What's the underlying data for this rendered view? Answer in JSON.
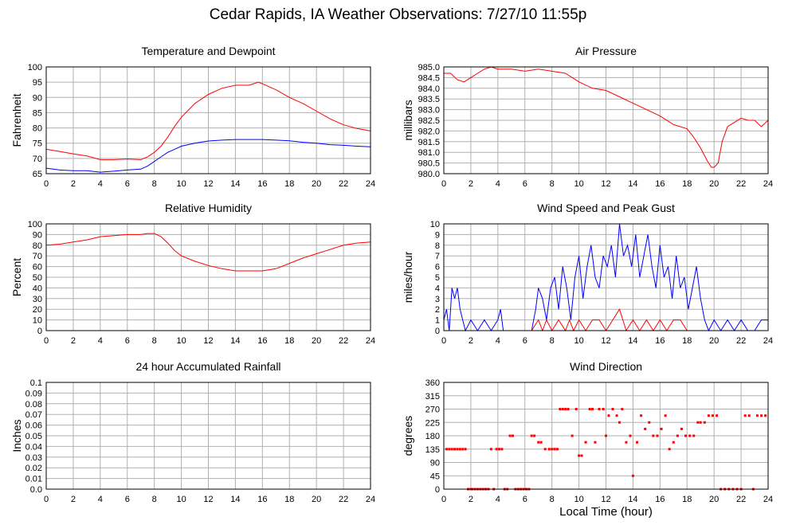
{
  "page": {
    "title": "Cedar Rapids, IA Weather Observations: 7/27/10 11:55p",
    "x_axis_label": "Local Time (hour)"
  },
  "chart_data": [
    {
      "type": "line",
      "title": "Temperature and Dewpoint",
      "ylabel": "Fahrenheit",
      "xlim": [
        0,
        24
      ],
      "ylim": [
        65,
        100
      ],
      "xticks": [
        0,
        2,
        4,
        6,
        8,
        10,
        12,
        14,
        16,
        18,
        20,
        22,
        24
      ],
      "yticks": [
        65,
        70,
        75,
        80,
        85,
        90,
        95,
        100
      ],
      "series": [
        {
          "color": "#ff0000",
          "x": [
            0,
            1,
            2,
            3,
            4,
            5,
            6,
            7,
            7.5,
            8,
            8.5,
            9,
            9.5,
            10,
            11,
            12,
            13,
            14,
            15,
            15.7,
            16,
            17,
            18,
            19,
            20,
            21,
            22,
            23,
            24
          ],
          "y": [
            73,
            72.3,
            71.5,
            70.8,
            69.6,
            69.6,
            69.8,
            69.6,
            70.5,
            72,
            74,
            77,
            80.5,
            83.5,
            88,
            91,
            93,
            94,
            94,
            95,
            94.5,
            92.5,
            90,
            88,
            85.5,
            83,
            81,
            79.8,
            79
          ]
        },
        {
          "color": "#0000ff",
          "x": [
            0,
            1,
            2,
            3,
            4,
            5,
            6,
            7,
            7.5,
            8,
            8.5,
            9,
            9.5,
            10,
            11,
            12,
            13,
            14,
            15,
            16,
            17,
            18,
            19,
            20,
            21,
            22,
            23,
            24
          ],
          "y": [
            66.8,
            66.2,
            66,
            66,
            65.5,
            65.8,
            66.2,
            66.5,
            67.5,
            69,
            70.5,
            72,
            73,
            74,
            75,
            75.7,
            76,
            76.2,
            76.2,
            76.2,
            76,
            75.8,
            75.3,
            75,
            74.5,
            74.3,
            74,
            73.8
          ]
        }
      ]
    },
    {
      "type": "line",
      "title": "Air Pressure",
      "ylabel": "millibars",
      "xlim": [
        0,
        24
      ],
      "ylim": [
        980.0,
        985.0
      ],
      "xticks": [
        0,
        2,
        4,
        6,
        8,
        10,
        12,
        14,
        16,
        18,
        20,
        22,
        24
      ],
      "yticks": [
        "980.0",
        "980.5",
        "981.0",
        "981.5",
        "982.0",
        "982.5",
        "983.0",
        "983.5",
        "984.0",
        "984.5",
        "985.0"
      ],
      "series": [
        {
          "color": "#ff0000",
          "x": [
            0,
            0.5,
            1,
            1.5,
            2,
            2.5,
            3,
            3.5,
            4,
            5,
            6,
            7,
            8,
            9,
            10,
            11,
            12,
            13,
            14,
            15,
            16,
            17,
            18,
            18.5,
            19,
            19.5,
            19.8,
            20,
            20.3,
            20.6,
            21,
            21.5,
            22,
            22.5,
            23,
            23.5,
            24
          ],
          "y": [
            984.7,
            984.7,
            984.4,
            984.3,
            984.5,
            984.7,
            984.9,
            985.0,
            984.9,
            984.9,
            984.8,
            984.9,
            984.8,
            984.7,
            984.3,
            984.0,
            983.9,
            983.6,
            983.3,
            983.0,
            982.7,
            982.3,
            982.1,
            981.7,
            981.2,
            980.6,
            980.3,
            980.3,
            980.5,
            981.5,
            982.2,
            982.4,
            982.6,
            982.5,
            982.5,
            982.2,
            982.5
          ]
        }
      ]
    },
    {
      "type": "line",
      "title": "Relative Humidity",
      "ylabel": "Percent",
      "xlim": [
        0,
        24
      ],
      "ylim": [
        0,
        100
      ],
      "xticks": [
        0,
        2,
        4,
        6,
        8,
        10,
        12,
        14,
        16,
        18,
        20,
        22,
        24
      ],
      "yticks": [
        0,
        10,
        20,
        30,
        40,
        50,
        60,
        70,
        80,
        90,
        100
      ],
      "series": [
        {
          "color": "#ff0000",
          "x": [
            0,
            1,
            2,
            3,
            4,
            5,
            6,
            7,
            7.5,
            8,
            8.5,
            9,
            9.5,
            10,
            11,
            12,
            13,
            14,
            15,
            16,
            17,
            18,
            19,
            20,
            21,
            22,
            23,
            24
          ],
          "y": [
            80,
            81,
            83,
            85,
            88,
            89,
            90,
            90,
            91,
            91,
            88,
            82,
            75,
            70,
            65,
            61,
            58,
            56,
            56,
            56,
            58,
            63,
            68,
            72,
            76,
            80,
            82,
            83
          ]
        }
      ]
    },
    {
      "type": "line",
      "title": "Wind Speed and Peak Gust",
      "ylabel": "miles/hour",
      "xlim": [
        0,
        24
      ],
      "ylim": [
        0,
        10
      ],
      "xticks": [
        0,
        2,
        4,
        6,
        8,
        10,
        12,
        14,
        16,
        18,
        20,
        22,
        24
      ],
      "yticks": [
        0,
        1,
        2,
        3,
        4,
        5,
        6,
        7,
        8,
        9,
        10
      ],
      "series": [
        {
          "color": "#0000ff",
          "x": [
            0,
            0.2,
            0.4,
            0.6,
            0.8,
            1.0,
            1.2,
            1.4,
            1.6,
            2.0,
            2.5,
            3.0,
            3.5,
            4.0,
            4.2,
            4.4,
            5.0,
            5.5,
            6.0,
            6.5,
            6.8,
            7.0,
            7.3,
            7.6,
            7.9,
            8.2,
            8.5,
            8.8,
            9.1,
            9.4,
            9.7,
            10.0,
            10.3,
            10.6,
            10.9,
            11.2,
            11.5,
            11.8,
            12.1,
            12.4,
            12.7,
            13.0,
            13.3,
            13.6,
            13.9,
            14.2,
            14.5,
            14.8,
            15.1,
            15.4,
            15.7,
            16.0,
            16.3,
            16.6,
            16.9,
            17.2,
            17.5,
            17.8,
            18.1,
            18.4,
            18.7,
            19.0,
            19.3,
            19.6,
            20.0,
            20.5,
            21.0,
            21.5,
            22.0,
            22.5,
            23.0,
            23.5,
            24.0
          ],
          "y": [
            1,
            2,
            0,
            4,
            3,
            4,
            2,
            1,
            0,
            1,
            0,
            1,
            0,
            1,
            2,
            0,
            0,
            0,
            0,
            0,
            2,
            4,
            3,
            1,
            4,
            5,
            2,
            6,
            4,
            1,
            5,
            7,
            3,
            6,
            8,
            5,
            4,
            7,
            6,
            8,
            5,
            10,
            7,
            8,
            6,
            9,
            5,
            7,
            9,
            6,
            4,
            8,
            5,
            6,
            3,
            7,
            4,
            5,
            2,
            4,
            6,
            3,
            1,
            0,
            1,
            0,
            1,
            0,
            1,
            0,
            0,
            1,
            1
          ]
        },
        {
          "color": "#ff0000",
          "x": [
            0,
            6.5,
            7.0,
            7.3,
            7.6,
            8.0,
            8.5,
            9.0,
            9.3,
            9.6,
            10.0,
            10.5,
            11.0,
            11.5,
            12.0,
            12.5,
            13.0,
            13.5,
            14.0,
            14.5,
            15.0,
            15.5,
            16.0,
            16.5,
            17.0,
            17.5,
            18.0,
            24.0
          ],
          "y": [
            0,
            0,
            1,
            0,
            1,
            0,
            1,
            0,
            1,
            0,
            1,
            0,
            1,
            1,
            0,
            1,
            2,
            0,
            1,
            0,
            1,
            0,
            1,
            0,
            1,
            1,
            0,
            0
          ]
        }
      ]
    },
    {
      "type": "line",
      "title": "24 hour Accumulated Rainfall",
      "ylabel": "Inches",
      "xlim": [
        0,
        24
      ],
      "ylim": [
        0.0,
        0.1
      ],
      "xticks": [
        0,
        2,
        4,
        6,
        8,
        10,
        12,
        14,
        16,
        18,
        20,
        22,
        24
      ],
      "yticks": [
        "0.0",
        "0.01",
        "0.02",
        "0.03",
        "0.04",
        "0.05",
        "0.06",
        "0.07",
        "0.08",
        "0.09",
        "0.1"
      ],
      "series": [
        {
          "color": "#ff0000",
          "x": [
            0,
            24
          ],
          "y": [
            0,
            0
          ]
        }
      ]
    },
    {
      "type": "scatter",
      "title": "Wind Direction",
      "ylabel": "degrees",
      "xlim": [
        0,
        24
      ],
      "ylim": [
        0,
        360
      ],
      "xticks": [
        0,
        2,
        4,
        6,
        8,
        10,
        12,
        14,
        16,
        18,
        20,
        22,
        24
      ],
      "yticks": [
        0,
        45,
        90,
        135,
        180,
        225,
        270,
        315,
        360
      ],
      "series": [
        {
          "color": "#ff0000",
          "x": [
            0.2,
            0.4,
            0.6,
            0.8,
            1.0,
            1.2,
            1.4,
            1.6,
            1.8,
            2.0,
            2.1,
            2.3,
            2.5,
            2.7,
            2.9,
            3.1,
            3.3,
            3.5,
            3.7,
            3.9,
            4.1,
            4.3,
            4.5,
            4.7,
            4.9,
            5.1,
            5.3,
            5.5,
            5.7,
            5.9,
            6.1,
            6.3,
            6.5,
            6.7,
            7.0,
            7.2,
            7.5,
            7.8,
            8.0,
            8.2,
            8.4,
            8.6,
            8.8,
            9.0,
            9.2,
            9.5,
            9.8,
            10.0,
            10.2,
            10.5,
            10.8,
            11.0,
            11.2,
            11.5,
            11.8,
            12.0,
            12.2,
            12.5,
            12.8,
            13.0,
            13.2,
            13.5,
            13.8,
            14.0,
            14.3,
            14.6,
            14.9,
            15.2,
            15.5,
            15.8,
            16.1,
            16.4,
            16.7,
            17.0,
            17.3,
            17.6,
            17.9,
            18.2,
            18.5,
            18.8,
            19.0,
            19.3,
            19.6,
            19.9,
            20.2,
            20.5,
            20.8,
            21.1,
            21.4,
            21.7,
            22.0,
            22.3,
            22.6,
            22.9,
            23.2,
            23.5,
            23.8
          ],
          "y": [
            135,
            135,
            135,
            135,
            135,
            135,
            135,
            135,
            0,
            0,
            0,
            0,
            0,
            0,
            0,
            0,
            0,
            135,
            0,
            135,
            135,
            135,
            0,
            0,
            180,
            180,
            0,
            0,
            0,
            0,
            0,
            0,
            180,
            180,
            158,
            158,
            135,
            135,
            135,
            135,
            135,
            270,
            270,
            270,
            270,
            180,
            270,
            113,
            113,
            158,
            270,
            270,
            158,
            270,
            270,
            180,
            248,
            270,
            248,
            225,
            270,
            158,
            180,
            45,
            158,
            248,
            203,
            225,
            180,
            180,
            203,
            248,
            135,
            158,
            180,
            203,
            180,
            180,
            180,
            225,
            225,
            225,
            248,
            248,
            248,
            0,
            0,
            0,
            0,
            0,
            0,
            248,
            248,
            0,
            248,
            248,
            248
          ]
        }
      ]
    }
  ]
}
